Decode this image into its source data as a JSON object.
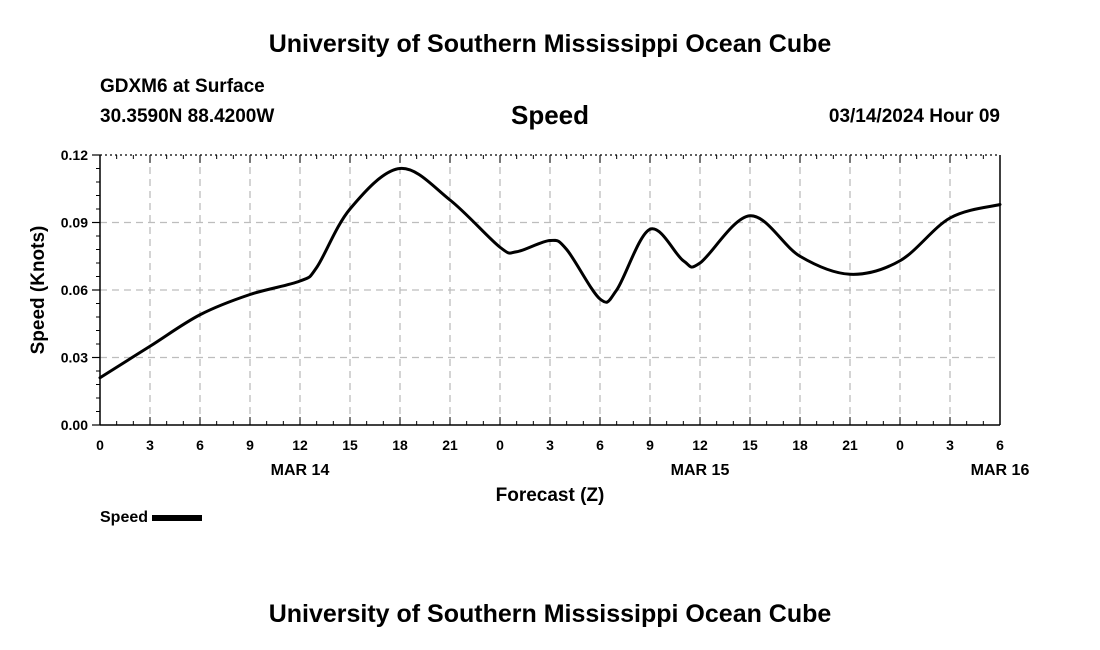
{
  "header": {
    "title": "University of Southern Mississippi Ocean Cube",
    "station": "GDXM6 at Surface",
    "coords": "30.3590N  88.4200W",
    "variable": "Speed",
    "datetime": "03/14/2024 Hour 09"
  },
  "footer": {
    "title": "University of Southern Mississippi Ocean Cube"
  },
  "legend": {
    "label": "Speed"
  },
  "colors": {
    "line": "#000000",
    "grid": "#bdbdbd",
    "axis": "#000000"
  },
  "chart_data": {
    "type": "line",
    "title": "Speed",
    "xlabel": "Forecast (Z)",
    "ylabel": "Speed (Knots)",
    "xlim": [
      0,
      54
    ],
    "ylim": [
      0,
      0.12
    ],
    "grid": true,
    "legend_position": "bottom-left",
    "x_tick_values": [
      0,
      3,
      6,
      9,
      12,
      15,
      18,
      21,
      24,
      27,
      30,
      33,
      36,
      39,
      42,
      45,
      48,
      51,
      54
    ],
    "x_tick_labels": [
      "0",
      "3",
      "6",
      "9",
      "12",
      "15",
      "18",
      "21",
      "0",
      "3",
      "6",
      "9",
      "12",
      "15",
      "18",
      "21",
      "0",
      "3",
      "6"
    ],
    "date_labels": [
      {
        "x": 12,
        "label": "MAR 14"
      },
      {
        "x": 36,
        "label": "MAR 15"
      },
      {
        "x": 54,
        "label": "MAR 16"
      }
    ],
    "y_ticks": [
      0.0,
      0.03,
      0.06,
      0.09,
      0.12
    ],
    "y_tick_labels": [
      "0.00",
      "0.03",
      "0.06",
      "0.09",
      "0.12"
    ],
    "series": [
      {
        "name": "Speed",
        "x": [
          0,
          3,
          6,
          9,
          12,
          13,
          15,
          18,
          21,
          24,
          25,
          27,
          28,
          30,
          31,
          33,
          35,
          36,
          39,
          42,
          45,
          48,
          51,
          54
        ],
        "y": [
          0.021,
          0.035,
          0.049,
          0.058,
          0.064,
          0.07,
          0.096,
          0.114,
          0.1,
          0.079,
          0.077,
          0.082,
          0.078,
          0.056,
          0.06,
          0.087,
          0.073,
          0.072,
          0.093,
          0.075,
          0.067,
          0.073,
          0.092,
          0.098
        ]
      }
    ]
  }
}
